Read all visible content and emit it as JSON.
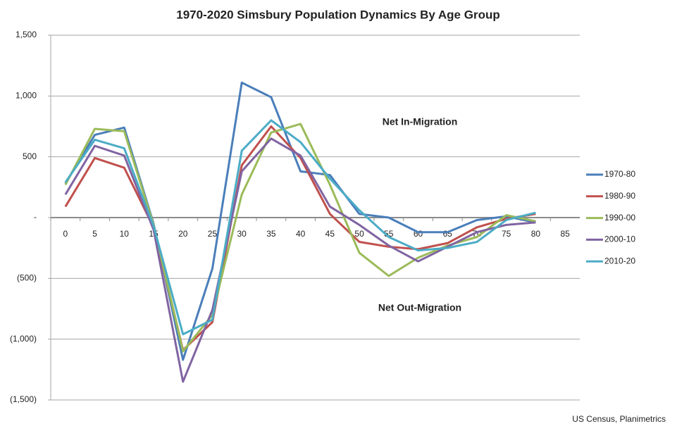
{
  "chart_data": {
    "type": "line",
    "title": "1970-2020 Simsbury Population Dynamics By Age Group",
    "annotations": [
      "Net In-Migration",
      "Net Out-Migration"
    ],
    "source": "US Census, Planimetrics",
    "categories": [
      "0",
      "5",
      "10",
      "15",
      "20",
      "25",
      "30",
      "35",
      "40",
      "45",
      "50",
      "55",
      "60",
      "65",
      "70",
      "75",
      "80",
      "85"
    ],
    "series": [
      {
        "name": "1970-80",
        "color": "#4a7eba",
        "values": [
          280,
          680,
          740,
          -50,
          -1170,
          -420,
          1110,
          990,
          380,
          350,
          30,
          0,
          -120,
          -120,
          -20,
          10,
          -40,
          null
        ]
      },
      {
        "name": "1980-90",
        "color": "#c0504d",
        "values": [
          90,
          490,
          410,
          -80,
          -1090,
          -860,
          430,
          750,
          490,
          30,
          -200,
          -240,
          -260,
          -210,
          -80,
          -10,
          30,
          null
        ]
      },
      {
        "name": "1990-00",
        "color": "#9bbb59",
        "values": [
          270,
          730,
          710,
          -60,
          -1100,
          -800,
          190,
          700,
          770,
          270,
          -290,
          -480,
          -330,
          -230,
          -160,
          20,
          -30,
          null
        ]
      },
      {
        "name": "2000-10",
        "color": "#8064a2",
        "values": [
          190,
          590,
          510,
          -100,
          -1350,
          -760,
          380,
          650,
          510,
          90,
          -60,
          -230,
          -360,
          -240,
          -120,
          -60,
          -40,
          null
        ]
      },
      {
        "name": "2010-20",
        "color": "#4bacc6",
        "values": [
          290,
          640,
          570,
          -70,
          -960,
          -840,
          550,
          800,
          620,
          320,
          60,
          -160,
          -270,
          -250,
          -200,
          -20,
          40,
          null
        ]
      }
    ],
    "ylim": [
      -1500,
      1500
    ],
    "yticks": [
      {
        "value": -1500,
        "label": "(1,500)"
      },
      {
        "value": -1000,
        "label": "(1,000)"
      },
      {
        "value": -500,
        "label": "(500)"
      },
      {
        "value": 0,
        "label": "-"
      },
      500,
      {
        "value": 1000,
        "label": "1,000"
      },
      {
        "value": 1500,
        "label": "1,500"
      }
    ],
    "grid": true,
    "legend": "right"
  }
}
